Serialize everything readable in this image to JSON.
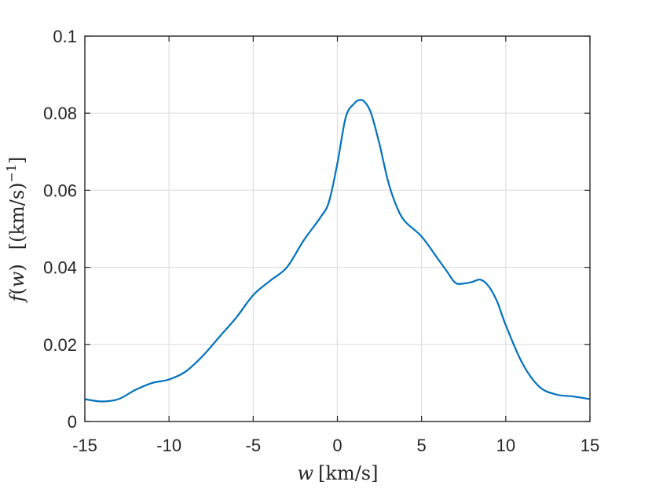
{
  "chart_data": {
    "type": "line",
    "xlabel": "w [km/s]",
    "ylabel": "f(w)   [(km/s)^-1]",
    "xlim": [
      -15,
      15
    ],
    "ylim": [
      0,
      0.1
    ],
    "xticks": [
      "-15",
      "-10",
      "-5",
      "0",
      "5",
      "10",
      "15"
    ],
    "yticks": [
      "0",
      "0.02",
      "0.04",
      "0.06",
      "0.08",
      "0.1"
    ],
    "grid": true,
    "series": [
      {
        "color": "#0072bd",
        "x": [
          -15,
          -14,
          -13,
          -12,
          -11,
          -10,
          -9,
          -8,
          -7,
          -6,
          -5,
          -4,
          -3,
          -2,
          -1,
          -0.5,
          0,
          0.5,
          1,
          1.3,
          1.6,
          2,
          2.5,
          3,
          3.5,
          4,
          5,
          6,
          6.5,
          7,
          7.5,
          8,
          8.5,
          9,
          9.5,
          10,
          11,
          12,
          13,
          14,
          15
        ],
        "y": [
          0.0058,
          0.0052,
          0.0058,
          0.0082,
          0.01,
          0.0109,
          0.013,
          0.017,
          0.022,
          0.027,
          0.0328,
          0.0365,
          0.04,
          0.047,
          0.053,
          0.057,
          0.067,
          0.079,
          0.0825,
          0.0834,
          0.083,
          0.08,
          0.072,
          0.0625,
          0.056,
          0.052,
          0.048,
          0.042,
          0.039,
          0.036,
          0.0358,
          0.0362,
          0.0368,
          0.035,
          0.031,
          0.025,
          0.015,
          0.009,
          0.007,
          0.0065,
          0.0058
        ]
      }
    ]
  }
}
